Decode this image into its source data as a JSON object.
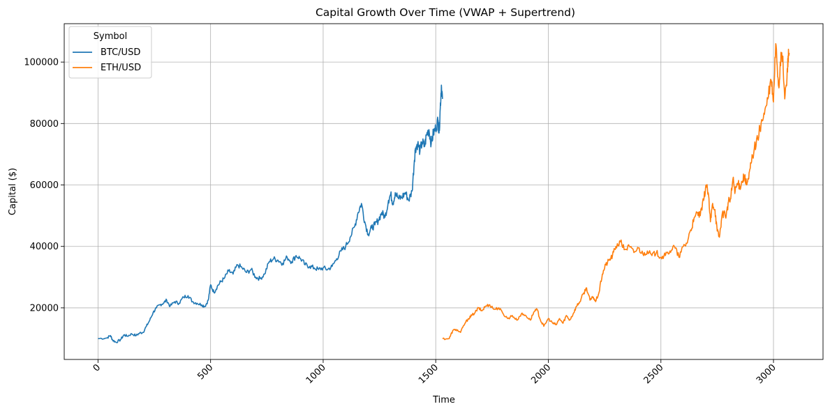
{
  "chart_data": {
    "type": "line",
    "title": "Capital Growth Over Time (VWAP + Supertrend)",
    "xlabel": "Time",
    "ylabel": "Capital ($)",
    "xlim": [
      -150,
      3220
    ],
    "ylim": [
      3200,
      112500
    ],
    "xticks": [
      0,
      500,
      1000,
      1500,
      2000,
      2500,
      3000
    ],
    "xtick_labels": [
      "0",
      "500",
      "1000",
      "1500",
      "2000",
      "2500",
      "3000"
    ],
    "yticks": [
      20000,
      40000,
      60000,
      80000,
      100000
    ],
    "ytick_labels": [
      "20000",
      "40000",
      "60000",
      "80000",
      "100000"
    ],
    "x_tick_rotation": 45,
    "grid": true,
    "legend": {
      "title": "Symbol",
      "position": "top-left"
    },
    "series": [
      {
        "name": "BTC/USD",
        "color": "#1f77b4",
        "x": [
          0,
          40,
          55,
          65,
          80,
          100,
          115,
          130,
          150,
          170,
          185,
          200,
          215,
          230,
          245,
          260,
          275,
          290,
          305,
          320,
          340,
          360,
          380,
          400,
          420,
          440,
          460,
          475,
          490,
          500,
          515,
          530,
          545,
          560,
          580,
          600,
          620,
          640,
          660,
          680,
          700,
          720,
          740,
          760,
          780,
          800,
          820,
          840,
          860,
          880,
          900,
          920,
          940,
          960,
          980,
          1000,
          1020,
          1040,
          1060,
          1080,
          1100,
          1120,
          1140,
          1155,
          1170,
          1185,
          1200,
          1215,
          1230,
          1245,
          1260,
          1275,
          1290,
          1300,
          1310,
          1320,
          1335,
          1350,
          1365,
          1380,
          1395,
          1405,
          1410,
          1420,
          1430,
          1440,
          1450,
          1460,
          1470,
          1480,
          1490,
          1500,
          1510,
          1515,
          1520,
          1525,
          1530
        ],
        "values": [
          10000,
          10200,
          11000,
          9500,
          8800,
          9600,
          11200,
          10800,
          11500,
          11000,
          11800,
          12000,
          14000,
          16000,
          18500,
          20000,
          21000,
          21500,
          22500,
          20500,
          22000,
          21500,
          23500,
          24000,
          22000,
          21500,
          21000,
          20500,
          22500,
          27500,
          25000,
          27000,
          28500,
          29500,
          32000,
          31000,
          34000,
          33000,
          31500,
          32500,
          30000,
          29500,
          31000,
          35000,
          36000,
          35500,
          34500,
          36500,
          35000,
          37000,
          36000,
          34000,
          33500,
          33000,
          32500,
          33000,
          32500,
          33500,
          36000,
          38500,
          40000,
          43000,
          46500,
          51000,
          54000,
          48000,
          44000,
          46000,
          47000,
          48500,
          51000,
          49500,
          55000,
          57000,
          54000,
          57500,
          55500,
          56000,
          57500,
          55000,
          58000,
          68000,
          72000,
          73500,
          71000,
          74000,
          72500,
          76500,
          78000,
          73500,
          77000,
          78500,
          81000,
          77000,
          85000,
          92500,
          88000
        ]
      },
      {
        "name": "ETH/USD",
        "color": "#ff7f0e",
        "x": [
          1530,
          1560,
          1575,
          1590,
          1610,
          1630,
          1645,
          1660,
          1675,
          1690,
          1705,
          1720,
          1740,
          1760,
          1780,
          1800,
          1820,
          1840,
          1860,
          1880,
          1900,
          1920,
          1935,
          1950,
          1965,
          1980,
          2000,
          2020,
          2035,
          2050,
          2065,
          2080,
          2095,
          2110,
          2125,
          2140,
          2155,
          2170,
          2185,
          2200,
          2210,
          2225,
          2240,
          2255,
          2270,
          2285,
          2300,
          2320,
          2340,
          2360,
          2380,
          2400,
          2420,
          2440,
          2460,
          2480,
          2500,
          2520,
          2540,
          2560,
          2580,
          2600,
          2615,
          2630,
          2645,
          2660,
          2675,
          2690,
          2700,
          2710,
          2720,
          2730,
          2740,
          2750,
          2760,
          2770,
          2780,
          2790,
          2800,
          2810,
          2820,
          2830,
          2840,
          2850,
          2860,
          2870,
          2880,
          2890,
          2900,
          2915,
          2930,
          2945,
          2960,
          2975,
          2990,
          3000,
          3010,
          3020,
          3025,
          3030,
          3040,
          3050,
          3060,
          3065,
          3070
        ],
        "values": [
          10000,
          10000,
          12500,
          13000,
          12000,
          15000,
          16500,
          17500,
          18500,
          20000,
          19000,
          20500,
          21000,
          19500,
          20000,
          18000,
          16500,
          17500,
          16000,
          18000,
          17500,
          16000,
          18500,
          19500,
          16000,
          14000,
          16500,
          15000,
          14500,
          16500,
          15000,
          17500,
          16000,
          18000,
          20500,
          22000,
          24500,
          26500,
          22500,
          23500,
          22000,
          25000,
          31000,
          34000,
          35500,
          37000,
          40000,
          41500,
          39000,
          40000,
          38000,
          39500,
          37500,
          38500,
          37000,
          38000,
          36500,
          37000,
          38500,
          40000,
          36500,
          40000,
          41000,
          45000,
          48000,
          51000,
          50000,
          55000,
          60000,
          57500,
          48000,
          54000,
          52000,
          45000,
          43000,
          49500,
          51000,
          50000,
          54500,
          55500,
          62000,
          58000,
          60500,
          59500,
          61000,
          63000,
          60000,
          62000,
          67000,
          72000,
          75000,
          80000,
          83000,
          88000,
          94000,
          87000,
          106000,
          95000,
          92000,
          100000,
          102000,
          88000,
          95000,
          102000,
          103000
        ]
      }
    ]
  }
}
